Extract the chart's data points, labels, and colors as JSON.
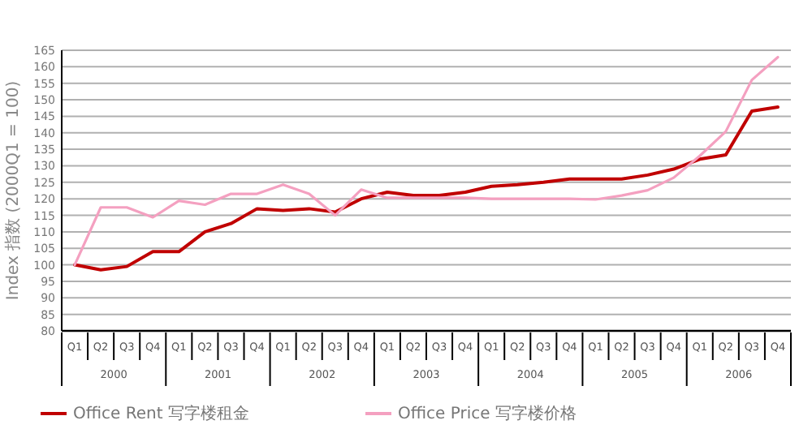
{
  "chart_data": {
    "type": "line",
    "ylabel": "Index 指数 (2000Q1 = 100)",
    "categories": [
      "Q1",
      "Q2",
      "Q3",
      "Q4",
      "Q1",
      "Q2",
      "Q3",
      "Q4",
      "Q1",
      "Q2",
      "Q3",
      "Q4",
      "Q1",
      "Q2",
      "Q3",
      "Q4",
      "Q1",
      "Q2",
      "Q3",
      "Q4",
      "Q1",
      "Q2",
      "Q3",
      "Q4",
      "Q1",
      "Q2",
      "Q3",
      "Q4"
    ],
    "annotations": [
      "2000",
      "2001",
      "2002",
      "2003",
      "2004",
      "2005",
      "2006"
    ],
    "series": [
      {
        "name": "Office Rent 写字楼租金",
        "color": "#c00000",
        "values": [
          100,
          98.5,
          99.5,
          104,
          104,
          110,
          112.5,
          117,
          116.5,
          117,
          116,
          120,
          122,
          121,
          121,
          122,
          123.8,
          124.3,
          125,
          126,
          126,
          126,
          127.2,
          129,
          132,
          133.3,
          146.6,
          147.8
        ]
      },
      {
        "name": "Office Price 写字楼价格",
        "color": "#f4a0c0",
        "values": [
          100,
          117.4,
          117.4,
          114.4,
          119.4,
          118.2,
          121.5,
          121.5,
          124.3,
          121.5,
          115,
          122.8,
          120.3,
          120.3,
          120.3,
          120.3,
          120,
          120,
          120,
          120,
          119.8,
          121,
          122.6,
          126.4,
          133,
          140.4,
          156,
          162.9
        ]
      }
    ],
    "ylim": [
      80,
      165
    ],
    "yticks": [
      80,
      85,
      90,
      95,
      100,
      105,
      110,
      115,
      120,
      125,
      130,
      135,
      140,
      145,
      150,
      155,
      160,
      165
    ],
    "grid": "y",
    "legend": "bottom left",
    "marker": "none",
    "line_style": "solid"
  }
}
